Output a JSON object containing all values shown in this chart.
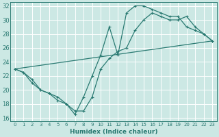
{
  "xlabel": "Humidex (Indice chaleur)",
  "bg_color": "#cce8e4",
  "grid_color": "#b0d8d2",
  "line_color": "#2a7a72",
  "xlim": [
    -0.5,
    23.5
  ],
  "ylim": [
    15.5,
    32.5
  ],
  "xticks": [
    0,
    1,
    2,
    3,
    4,
    5,
    6,
    7,
    8,
    9,
    10,
    11,
    12,
    13,
    14,
    15,
    16,
    17,
    18,
    19,
    20,
    21,
    22,
    23
  ],
  "yticks": [
    16,
    18,
    20,
    22,
    24,
    26,
    28,
    30,
    32
  ],
  "line1_x": [
    0,
    1,
    2,
    3,
    4,
    5,
    6,
    7,
    8,
    9,
    10,
    11,
    12,
    13,
    14,
    15,
    16,
    17,
    18,
    19,
    20,
    21,
    22,
    23
  ],
  "line1_y": [
    23,
    22.5,
    21,
    20,
    19.5,
    19,
    18,
    16.5,
    19,
    22,
    25,
    29,
    25,
    31,
    32,
    32,
    31.5,
    31,
    30.5,
    30.5,
    29,
    28.5,
    28,
    27
  ],
  "line2_x": [
    0,
    1,
    2,
    3,
    4,
    5,
    6,
    7,
    8,
    9,
    10,
    11,
    12,
    13,
    14,
    15,
    16,
    17,
    18,
    19,
    20,
    21,
    22,
    23
  ],
  "line2_y": [
    23,
    22.5,
    21.5,
    20,
    19.5,
    18.5,
    18,
    17,
    17,
    19,
    23,
    24.5,
    25.5,
    26,
    28.5,
    30,
    31,
    30.5,
    30,
    30,
    30.5,
    29,
    28,
    27
  ],
  "line3_x": [
    0,
    23
  ],
  "line3_y": [
    23,
    27
  ]
}
